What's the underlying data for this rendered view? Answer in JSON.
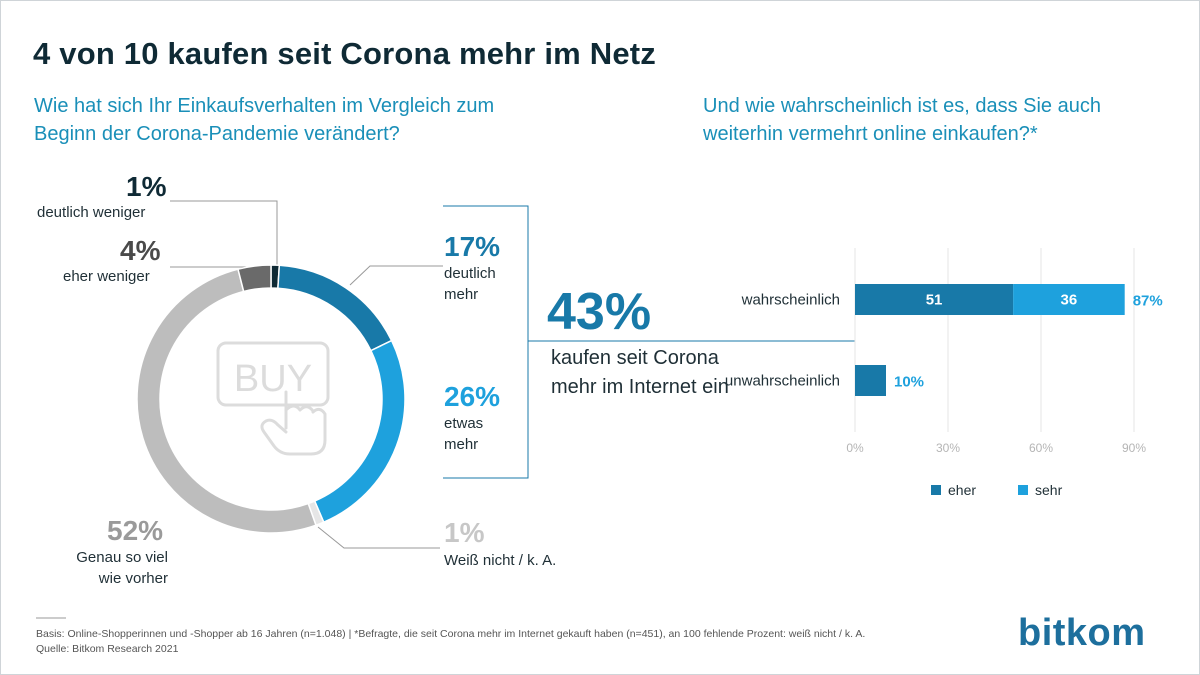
{
  "title": "4 von 10 kaufen seit Corona mehr im Netz",
  "question_left": "Wie hat sich Ihr Einkaufsverhalten im Vergleich zum Beginn der Corona-Pandemie verändert?",
  "question_right": "Und wie wahrscheinlich ist es, dass Sie auch weiterhin vermehrt online einkaufen?*",
  "summary": {
    "value": "43%",
    "text": "kaufen seit Corona mehr im Internet ein"
  },
  "footnote": {
    "basis": "Basis: Online-Shopperinnen und -Shopper ab 16 Jahren (n=1.048) | *Befragte, die seit Corona mehr im Internet gekauft haben (n=451), an 100 fehlende Prozent: weiß nicht / k. A.",
    "source": "Quelle: Bitkom Research 2021"
  },
  "logo": "bitkom",
  "icon": "buy-hand-icon",
  "chart_data": [
    {
      "type": "pie",
      "variant": "donut",
      "slices": [
        {
          "label": "deutlich weniger",
          "value": 1,
          "display": "1%",
          "color": "#0f2a35"
        },
        {
          "label": "deutlich mehr",
          "value": 17,
          "display": "17%",
          "color": "#1879a8"
        },
        {
          "label": "etwas mehr",
          "value": 26,
          "display": "26%",
          "color": "#1ea1dd"
        },
        {
          "label": "Weiß nicht / k. A.",
          "value": 1,
          "display": "1%",
          "color": "#e6e6e6"
        },
        {
          "label": "Genau so viel wie vorher",
          "value": 52,
          "display": "52%",
          "color": "#bdbdbd"
        },
        {
          "label": "eher weniger",
          "value": 4,
          "display": "4%",
          "color": "#6a6a6a"
        }
      ]
    },
    {
      "type": "bar",
      "orientation": "horizontal",
      "stacked": true,
      "categories": [
        "wahrscheinlich",
        "unwahrscheinlich"
      ],
      "series": [
        {
          "name": "eher",
          "values": [
            51,
            10
          ],
          "color": "#1879a8"
        },
        {
          "name": "sehr",
          "values": [
            36,
            0
          ],
          "color": "#1ea1dd"
        }
      ],
      "segment_labels": [
        [
          "51",
          "36"
        ],
        []
      ],
      "totals": [
        "87%",
        "10%"
      ],
      "xlim": [
        0,
        90
      ],
      "xticks": [
        "0%",
        "30%",
        "60%",
        "90%"
      ],
      "grid": true,
      "legend": "bottom"
    }
  ]
}
